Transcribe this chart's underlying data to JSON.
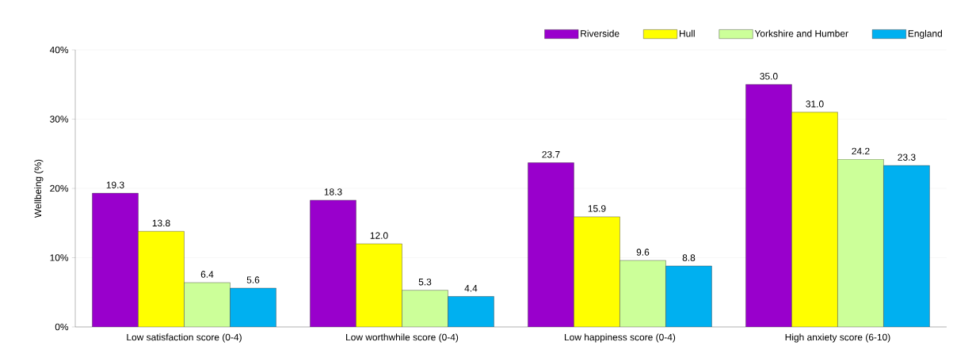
{
  "chart_data": {
    "type": "bar",
    "ylabel": "Wellbeing (%)",
    "categories": [
      "Low satisfaction score (0-4)",
      "Low worthwhile score (0-4)",
      "Low happiness score (0-4)",
      "High anxiety score (6-10)"
    ],
    "series": [
      {
        "name": "Riverside",
        "color": "#9900cc",
        "values": [
          19.3,
          18.3,
          23.7,
          35.0
        ],
        "value_labels": [
          "19.3",
          "18.3",
          "23.7",
          "35.0"
        ]
      },
      {
        "name": "Hull",
        "color": "#ffff00",
        "values": [
          13.8,
          12.0,
          15.9,
          31.0
        ],
        "value_labels": [
          "13.8",
          "12.0",
          "15.9",
          "31.0"
        ]
      },
      {
        "name": "Yorkshire and Humber",
        "color": "#ccff99",
        "values": [
          6.4,
          5.3,
          9.6,
          24.2
        ],
        "value_labels": [
          "6.4",
          "5.3",
          "9.6",
          "24.2"
        ]
      },
      {
        "name": "England",
        "color": "#00b0f0",
        "values": [
          5.6,
          4.4,
          8.8,
          23.3
        ],
        "value_labels": [
          "5.6",
          "4.4",
          "8.8",
          "23.3"
        ]
      }
    ],
    "ylim": [
      0,
      40
    ],
    "yticks": [
      {
        "value": 0,
        "label": "0%"
      },
      {
        "value": 10,
        "label": "10%"
      },
      {
        "value": 20,
        "label": "20%"
      },
      {
        "value": 30,
        "label": "30%"
      },
      {
        "value": 40,
        "label": "40%"
      }
    ],
    "grid": "y",
    "legend": "top right"
  }
}
